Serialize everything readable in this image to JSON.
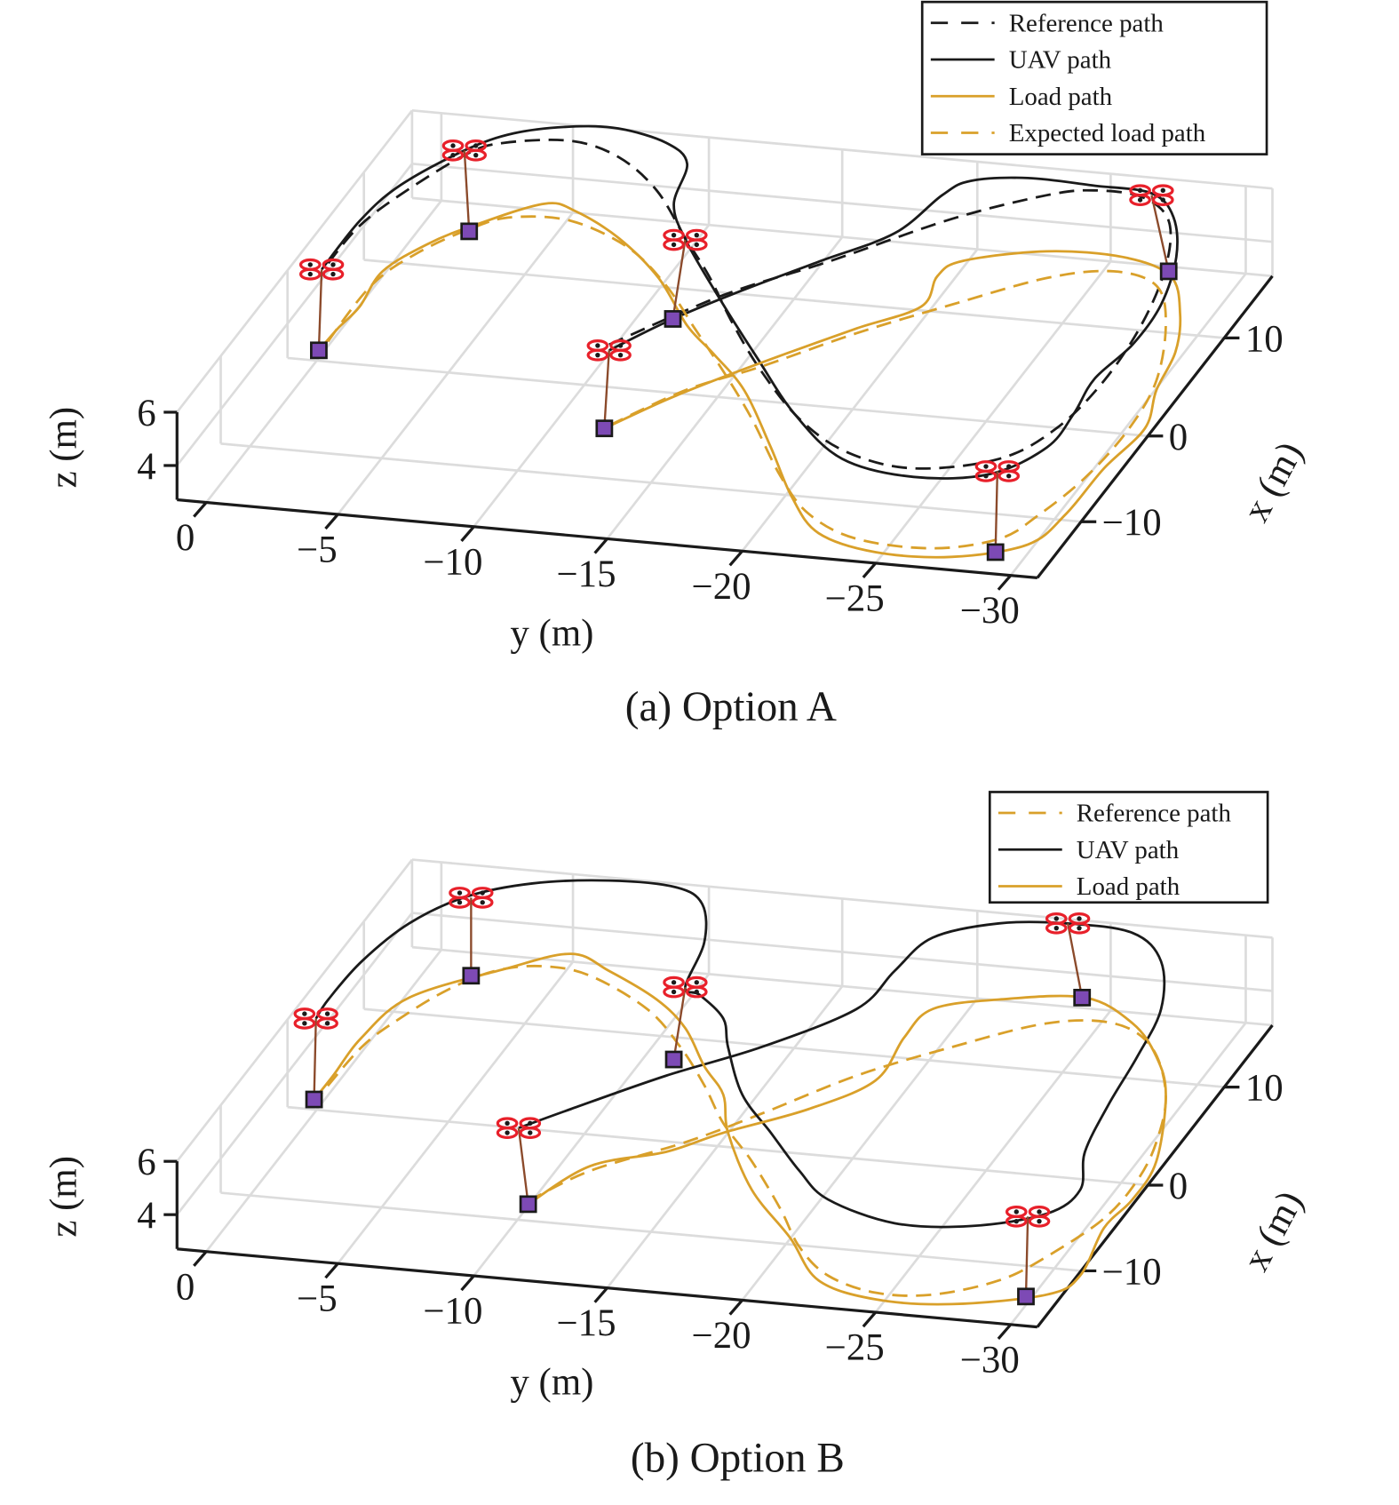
{
  "colors": {
    "black": "#1a1a1a",
    "orange": "#d9a02a",
    "grid": "#dcdcdc",
    "drone": "#e8202a",
    "tether": "#8b4a2b",
    "load": "#7d4ab5"
  },
  "chart_data": [
    {
      "type": "line3d",
      "caption": "(a) Option A",
      "xlabel": "x (m)",
      "ylabel": "y (m)",
      "zlabel": "z (m)",
      "x_ticks": [
        "10",
        "0",
        "−10"
      ],
      "y_ticks": [
        "0",
        "−5",
        "−10",
        "−15",
        "−20",
        "−25",
        "−30"
      ],
      "z_ticks": [
        "6",
        "4"
      ],
      "grid": true,
      "legend_position": "top-right",
      "series": [
        {
          "name": "Reference path",
          "color": "#1a1a1a",
          "style": "dashed"
        },
        {
          "name": "UAV path",
          "color": "#1a1a1a",
          "style": "solid"
        },
        {
          "name": "Load path",
          "color": "#d9a02a",
          "style": "solid"
        },
        {
          "name": "Expected load path",
          "color": "#d9a02a",
          "style": "dashed"
        }
      ],
      "snapshots": 6
    },
    {
      "type": "line3d",
      "caption": "(b) Option B",
      "xlabel": "x (m)",
      "ylabel": "y (m)",
      "zlabel": "z (m)",
      "x_ticks": [
        "10",
        "0",
        "−10"
      ],
      "y_ticks": [
        "0",
        "−5",
        "−10",
        "−15",
        "−20",
        "−25",
        "−30"
      ],
      "z_ticks": [
        "6",
        "4"
      ],
      "grid": true,
      "legend_position": "top-right",
      "series": [
        {
          "name": "Reference path",
          "color": "#d9a02a",
          "style": "dashed"
        },
        {
          "name": "UAV path",
          "color": "#1a1a1a",
          "style": "solid"
        },
        {
          "name": "Load path",
          "color": "#d9a02a",
          "style": "solid"
        }
      ],
      "snapshots": 6
    }
  ]
}
